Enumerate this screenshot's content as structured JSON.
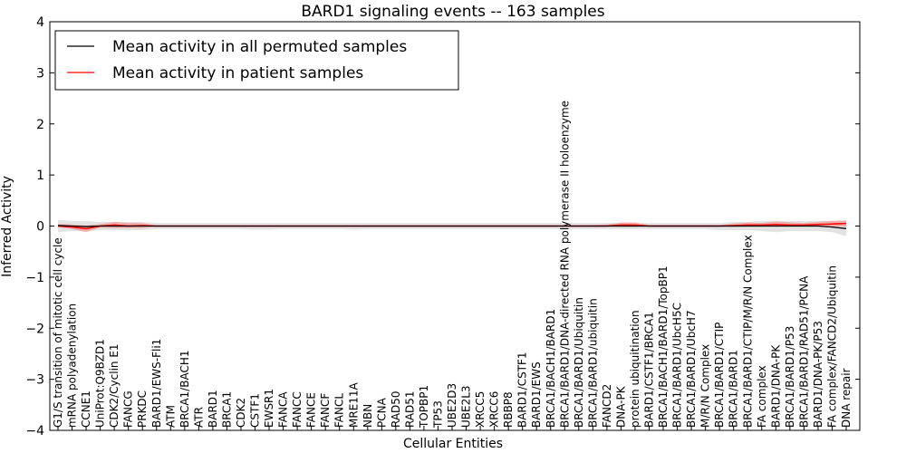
{
  "chart_data": {
    "type": "line",
    "title": "BARD1 signaling events -- 163 samples",
    "xlabel": "Cellular Entities",
    "ylabel": "Inferred Activity",
    "ylim": [
      -4,
      4
    ],
    "yticks": [
      "−4",
      "−3",
      "−2",
      "−1",
      "0",
      "1",
      "2",
      "3",
      "4"
    ],
    "ytick_values": [
      -4,
      -3,
      -2,
      -1,
      0,
      1,
      2,
      3,
      4
    ],
    "legend": {
      "placement": "top-left",
      "entries": [
        {
          "label": "Mean activity in all permuted samples",
          "color": "#000000"
        },
        {
          "label": "Mean activity in patient samples",
          "color": "#ff0000"
        }
      ]
    },
    "categories": [
      "G1/S transition of mitotic cell cycle",
      "mRNA polyadenylation",
      "CCNE1",
      "UniProt:Q9BZD1",
      "CDK2/Cyclin E1",
      "FANCG",
      "PRKDC",
      "BARD1/EWS-Fli1",
      "ATM",
      "BRCA1/BACH1",
      "ATR",
      "BARD1",
      "BRCA1",
      "CDK2",
      "CSTF1",
      "EWSR1",
      "FANCA",
      "FANCC",
      "FANCE",
      "FANCF",
      "FANCL",
      "MRE11A",
      "NBN",
      "PCNA",
      "RAD50",
      "RAD51",
      "TOPBP1",
      "TP53",
      "UBE2D3",
      "UBE2L3",
      "XRCC5",
      "XRCC6",
      "RBBP8",
      "BARD1/CSTF1",
      "BARD1/EWS",
      "BRCA1/BACH1/BARD1",
      "BRCA1/BARD1/DNA-directed RNA polymerase II holoenzyme",
      "BRCA1/BARD1/Ubiquitin",
      "BRCA1/BARD1/ubiquitin",
      "FANCD2",
      "DNA-PK",
      "protein ubiquitination",
      "BARD1/CSTF1/BRCA1",
      "BRCA1/BACH1/BARD1/TopBP1",
      "BRCA1/BARD1/UbcH5C",
      "BRCA1/BARD1/UbcH7",
      "M/R/N Complex",
      "BRCA1/BARD1/CTIP",
      "BRCA1/BARD1",
      "BRCA1/BARD1/CTIP/M/R/N Complex",
      "FA complex",
      "BARD1/DNA-PK",
      "BRCA1/BARD1/P53",
      "BRCA1/BARD1/RAD51/PCNA",
      "BARD1/DNA-PK/P53",
      "FA complex/FANCD2/Ubiquitin",
      "DNA repair"
    ],
    "series": [
      {
        "name": "Mean activity in all permuted samples",
        "color": "#000000",
        "values": [
          0.01,
          0.0,
          -0.01,
          0.0,
          0.0,
          0.0,
          0.0,
          0.0,
          0.0,
          0.0,
          0.0,
          0.0,
          0.0,
          0.0,
          0.0,
          0.0,
          0.0,
          0.0,
          0.0,
          0.0,
          0.0,
          0.0,
          0.0,
          0.0,
          0.0,
          0.0,
          0.0,
          0.0,
          0.0,
          0.0,
          0.0,
          0.0,
          0.0,
          0.0,
          0.0,
          0.0,
          0.0,
          0.0,
          0.0,
          0.0,
          0.0,
          0.0,
          0.0,
          0.0,
          0.0,
          0.0,
          0.0,
          0.0,
          0.0,
          0.0,
          0.0,
          0.0,
          0.0,
          0.0,
          0.0,
          -0.02,
          -0.05
        ],
        "band_low": [
          -0.12,
          -0.1,
          -0.1,
          -0.08,
          -0.08,
          -0.08,
          -0.08,
          -0.06,
          -0.06,
          -0.06,
          -0.06,
          -0.06,
          -0.06,
          -0.06,
          -0.07,
          -0.07,
          -0.06,
          -0.06,
          -0.06,
          -0.06,
          -0.06,
          -0.07,
          -0.06,
          -0.06,
          -0.06,
          -0.06,
          -0.06,
          -0.06,
          -0.06,
          -0.06,
          -0.06,
          -0.06,
          -0.06,
          -0.06,
          -0.06,
          -0.06,
          -0.06,
          -0.06,
          -0.06,
          -0.06,
          -0.06,
          -0.06,
          -0.06,
          -0.06,
          -0.06,
          -0.06,
          -0.06,
          -0.08,
          -0.08,
          -0.08,
          -0.1,
          -0.12,
          -0.1,
          -0.1,
          -0.1,
          -0.12,
          -0.2
        ],
        "band_high": [
          0.12,
          0.1,
          0.1,
          0.08,
          0.08,
          0.08,
          0.08,
          0.06,
          0.06,
          0.06,
          0.06,
          0.06,
          0.06,
          0.06,
          0.06,
          0.06,
          0.06,
          0.06,
          0.06,
          0.06,
          0.06,
          0.06,
          0.06,
          0.06,
          0.06,
          0.06,
          0.06,
          0.06,
          0.06,
          0.06,
          0.06,
          0.06,
          0.06,
          0.06,
          0.06,
          0.06,
          0.06,
          0.06,
          0.06,
          0.06,
          0.06,
          0.06,
          0.06,
          0.06,
          0.06,
          0.06,
          0.06,
          0.06,
          0.08,
          0.08,
          0.1,
          0.1,
          0.1,
          0.1,
          0.1,
          0.1,
          0.12
        ]
      },
      {
        "name": "Mean activity in patient samples",
        "color": "#ff0000",
        "values": [
          0.0,
          -0.02,
          -0.05,
          0.0,
          0.02,
          0.0,
          0.01,
          0.0,
          0.0,
          0.0,
          0.0,
          0.0,
          0.0,
          0.0,
          0.0,
          0.0,
          0.0,
          0.0,
          0.0,
          0.0,
          0.0,
          0.0,
          0.0,
          0.0,
          0.0,
          0.0,
          0.0,
          0.0,
          0.0,
          0.0,
          0.0,
          0.0,
          0.0,
          0.0,
          0.0,
          0.0,
          0.0,
          0.0,
          0.0,
          0.0,
          0.02,
          0.02,
          0.0,
          0.0,
          0.0,
          0.0,
          0.0,
          0.0,
          0.01,
          0.02,
          0.02,
          0.03,
          0.02,
          0.02,
          0.03,
          0.04,
          0.05
        ],
        "band_low": [
          -0.02,
          -0.06,
          -0.12,
          -0.03,
          -0.04,
          -0.04,
          -0.04,
          -0.01,
          -0.01,
          -0.01,
          -0.01,
          -0.01,
          -0.01,
          -0.01,
          -0.01,
          -0.01,
          -0.01,
          -0.01,
          -0.01,
          -0.01,
          -0.01,
          -0.01,
          -0.01,
          -0.01,
          -0.01,
          -0.01,
          -0.01,
          -0.01,
          -0.01,
          -0.01,
          -0.01,
          -0.01,
          -0.01,
          -0.01,
          -0.01,
          -0.01,
          -0.01,
          -0.01,
          -0.01,
          -0.01,
          -0.02,
          -0.02,
          -0.01,
          -0.01,
          -0.01,
          -0.01,
          -0.01,
          -0.01,
          -0.02,
          -0.01,
          -0.01,
          -0.01,
          -0.01,
          -0.01,
          -0.01,
          -0.01,
          -0.01
        ],
        "band_high": [
          0.04,
          0.03,
          0.01,
          0.04,
          0.08,
          0.06,
          0.06,
          0.01,
          0.01,
          0.01,
          0.01,
          0.01,
          0.01,
          0.01,
          0.01,
          0.01,
          0.01,
          0.01,
          0.01,
          0.01,
          0.01,
          0.01,
          0.01,
          0.01,
          0.01,
          0.01,
          0.01,
          0.01,
          0.01,
          0.01,
          0.01,
          0.01,
          0.01,
          0.01,
          0.01,
          0.01,
          0.01,
          0.01,
          0.02,
          0.03,
          0.07,
          0.07,
          0.02,
          0.02,
          0.02,
          0.02,
          0.02,
          0.02,
          0.05,
          0.07,
          0.06,
          0.09,
          0.07,
          0.06,
          0.08,
          0.1,
          0.1
        ]
      }
    ]
  }
}
